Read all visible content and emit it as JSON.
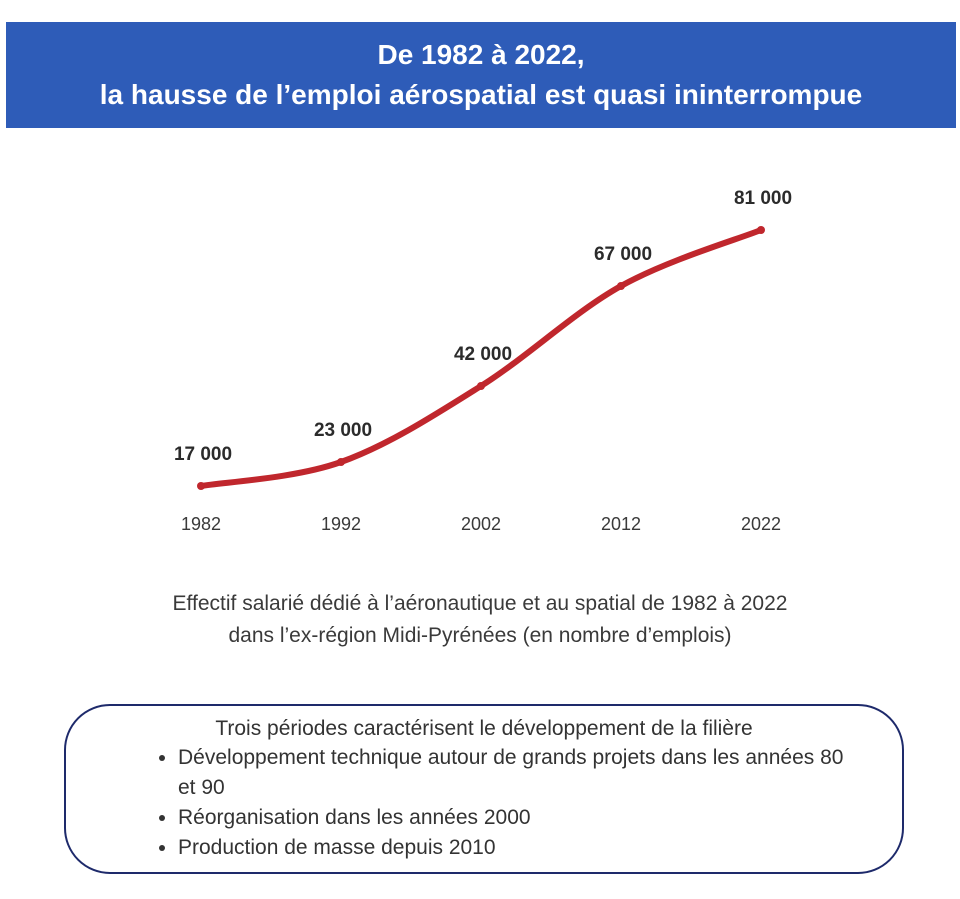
{
  "header": {
    "title_line1": "De 1982 à 2022,",
    "title_line2": "la hausse de l’emploi aérospatial est quasi ininterrompue"
  },
  "chart_data": {
    "type": "line",
    "x": [
      "1982",
      "1992",
      "2002",
      "2012",
      "2022"
    ],
    "series": [
      {
        "values": [
          17000,
          23000,
          42000,
          67000,
          81000
        ]
      }
    ],
    "data_labels": [
      "17 000",
      "23 000",
      "42 000",
      "67 000",
      "81 000"
    ],
    "line_color": "#c0272d",
    "grid": false
  },
  "caption": {
    "line1": "Effectif salarié dédié à l’aéronautique et au spatial de 1982 à 2022",
    "line2": "dans l’ex-région Midi-Pyrénées (en nombre d’emplois)"
  },
  "info_box": {
    "title": "Trois périodes caractérisent le développement de la filière",
    "items": [
      "Développement technique autour de grands projets dans les années 80 et 90",
      "Réorganisation dans les années 2000",
      "Production de masse depuis 2010"
    ]
  },
  "colors": {
    "banner": "#2e5cb8",
    "line": "#c0272d",
    "box_border": "#1e2a6b"
  }
}
